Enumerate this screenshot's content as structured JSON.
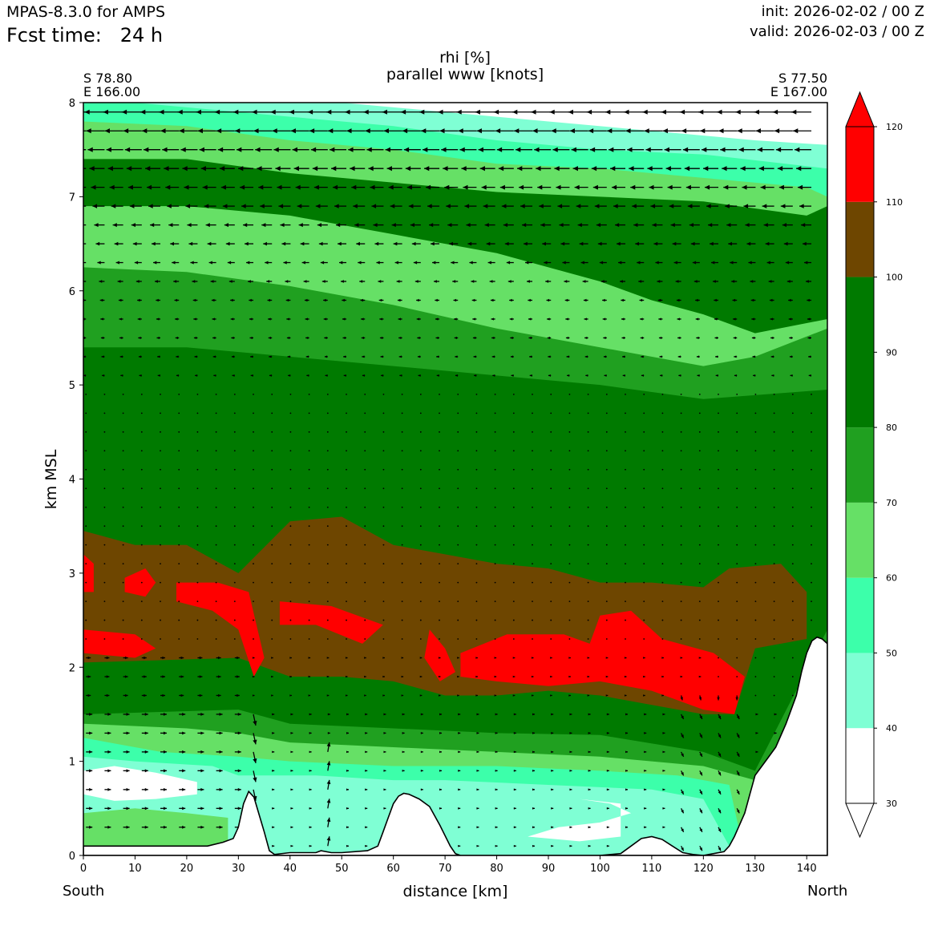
{
  "header": {
    "model": "MPAS-8.3.0 for AMPS",
    "fcst_label": "Fcst time:",
    "fcst_value": "24 h",
    "init": "init: 2026-02-02 / 00 Z",
    "valid": "valid: 2026-02-03 / 00 Z"
  },
  "endpoints": {
    "left": {
      "lat": "S 78.80",
      "lon": "E 166.00",
      "side": "South"
    },
    "right": {
      "lat": "S 77.50",
      "lon": "E 167.00",
      "side": "North"
    }
  },
  "chart_data": {
    "type": "heatmap",
    "title": "rhi [%]",
    "subtitle": "parallel www [knots]",
    "xlabel": "distance [km]",
    "ylabel": "km MSL",
    "xlim": [
      0,
      144
    ],
    "ylim": [
      0,
      8
    ],
    "xticks": [
      0,
      10,
      20,
      30,
      40,
      50,
      60,
      70,
      80,
      90,
      100,
      110,
      120,
      130,
      140
    ],
    "yticks": [
      0,
      1,
      2,
      3,
      4,
      5,
      6,
      7,
      8
    ],
    "colorbar": {
      "ticks": [
        30,
        40,
        50,
        60,
        70,
        80,
        90,
        100,
        110,
        120
      ],
      "bands": [
        {
          "from": 30,
          "to": 40,
          "color": "#ffffff"
        },
        {
          "from": 40,
          "to": 50,
          "color": "#7fffd4"
        },
        {
          "from": 50,
          "to": 60,
          "color": "#3cffaa"
        },
        {
          "from": 60,
          "to": 70,
          "color": "#66e066"
        },
        {
          "from": 70,
          "to": 80,
          "color": "#20a020"
        },
        {
          "from": 80,
          "to": 100,
          "color": "#007a00"
        },
        {
          "from": 100,
          "to": 110,
          "color": "#6e4600"
        },
        {
          "from": 110,
          "to": 120,
          "color": "#ff0000"
        }
      ],
      "extend": "both"
    },
    "terrain": {
      "x": [
        0,
        24,
        27,
        29,
        30,
        31,
        32,
        33,
        35,
        36,
        37,
        40,
        45,
        46,
        48,
        50,
        55,
        57,
        58,
        59,
        60,
        61,
        62,
        63,
        65,
        67,
        69,
        71,
        72,
        73,
        80,
        100,
        104,
        106,
        108,
        110,
        112,
        114,
        116,
        118,
        120,
        122,
        124,
        125,
        126,
        128,
        129,
        130,
        132,
        134,
        136,
        138,
        139,
        140,
        141,
        142,
        143,
        144
      ],
      "y": [
        0.1,
        0.1,
        0.14,
        0.18,
        0.3,
        0.55,
        0.68,
        0.62,
        0.25,
        0.05,
        0.01,
        0.03,
        0.03,
        0.05,
        0.03,
        0.03,
        0.05,
        0.1,
        0.25,
        0.4,
        0.55,
        0.63,
        0.66,
        0.65,
        0.6,
        0.52,
        0.32,
        0.1,
        0.02,
        0.0,
        0.0,
        0.0,
        0.02,
        0.1,
        0.18,
        0.2,
        0.17,
        0.1,
        0.03,
        0.01,
        0.0,
        0.02,
        0.04,
        0.1,
        0.2,
        0.45,
        0.65,
        0.85,
        1.0,
        1.15,
        1.4,
        1.7,
        1.95,
        2.15,
        2.28,
        2.32,
        2.3,
        2.25
      ]
    }
  }
}
